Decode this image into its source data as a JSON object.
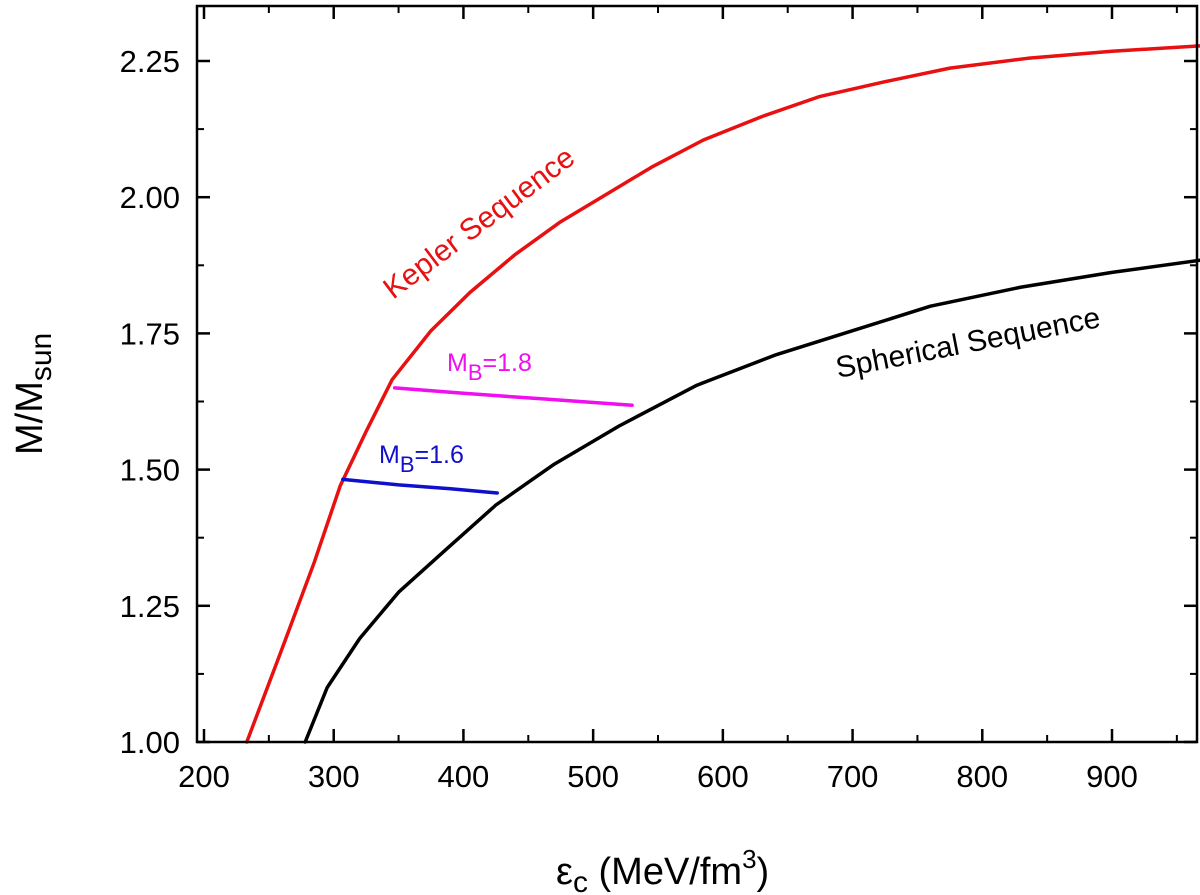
{
  "chart_data": {
    "type": "line",
    "xlabel": {
      "symbol": "ε",
      "symbol_sub": "c",
      "text": " (MeV/fm",
      "sup": "3",
      "close": ")"
    },
    "ylabel": {
      "main": "M/M",
      "sub": "sun"
    },
    "xlim": [
      195,
      970
    ],
    "ylim": [
      1.0,
      2.35
    ],
    "xticks": [
      200,
      300,
      400,
      500,
      600,
      700,
      800,
      900
    ],
    "xtick_labels": [
      "200",
      "300",
      "400",
      "500",
      "600",
      "700",
      "800",
      "900"
    ],
    "yticks": [
      1.0,
      1.25,
      1.5,
      1.75,
      2.0,
      2.25
    ],
    "ytick_labels": [
      "1.00",
      "1.25",
      "1.50",
      "1.75",
      "2.00",
      "2.25"
    ],
    "series": [
      {
        "name": "Kepler Sequence",
        "color": "#e81010",
        "x": [
          233,
          260,
          285,
          305,
          325,
          345,
          375,
          405,
          440,
          475,
          510,
          545,
          585,
          630,
          675,
          725,
          775,
          835,
          900,
          970
        ],
        "y": [
          1.0,
          1.17,
          1.33,
          1.47,
          1.57,
          1.665,
          1.755,
          1.825,
          1.895,
          1.955,
          2.005,
          2.055,
          2.105,
          2.148,
          2.185,
          2.212,
          2.237,
          2.255,
          2.268,
          2.278
        ]
      },
      {
        "name": "Spherical Sequence",
        "color": "#000000",
        "x": [
          278,
          295,
          320,
          350,
          385,
          425,
          470,
          520,
          580,
          640,
          700,
          760,
          830,
          900,
          970
        ],
        "y": [
          1.0,
          1.1,
          1.19,
          1.275,
          1.35,
          1.435,
          1.51,
          1.58,
          1.655,
          1.71,
          1.755,
          1.8,
          1.835,
          1.862,
          1.885
        ]
      },
      {
        "name": "M_B=1.8",
        "color": "#ee10ee",
        "x": [
          347,
          400,
          460,
          530
        ],
        "y": [
          1.65,
          1.64,
          1.63,
          1.618
        ]
      },
      {
        "name": "M_B=1.6",
        "color": "#1010cc",
        "x": [
          307,
          350,
          390,
          426
        ],
        "y": [
          1.482,
          1.472,
          1.465,
          1.457
        ]
      }
    ],
    "annotations": {
      "kepler": "Kepler Sequence",
      "spherical": "Spherical Sequence",
      "mb18": {
        "main": "M",
        "sub": "B",
        "rest": "=1.8"
      },
      "mb16": {
        "main": "M",
        "sub": "B",
        "rest": "=1.6"
      }
    }
  }
}
